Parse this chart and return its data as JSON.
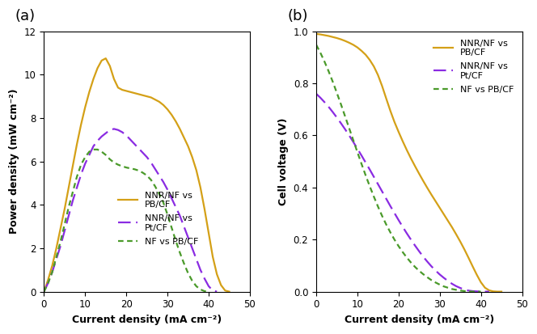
{
  "panel_a_label": "(a)",
  "panel_b_label": "(b)",
  "color_yellow": "#D4A017",
  "color_purple": "#8A2BE2",
  "color_green": "#4A9A2A",
  "legend_labels": [
    "NNR/NF vs\nPB/CF",
    "NNR/NF vs\nPt/CF",
    "NF vs PB/CF"
  ],
  "xlabel": "Current density (mA cm⁻²)",
  "ylabel_a": "Power density (mW cm⁻²)",
  "ylabel_b": "Cell voltage (V)",
  "xlim": [
    0,
    50
  ],
  "ylim_a": [
    0,
    12
  ],
  "ylim_b": [
    0,
    1.0
  ],
  "xticks_a": [
    0,
    10,
    20,
    30,
    40,
    50
  ],
  "yticks_a": [
    0,
    2,
    4,
    6,
    8,
    10,
    12
  ],
  "xticks_b": [
    0,
    10,
    20,
    30,
    40,
    50
  ],
  "yticks_b": [
    0,
    0.2,
    0.4,
    0.6,
    0.8,
    1.0
  ],
  "panel_label_fontsize": 13,
  "axis_label_fontsize": 9,
  "tick_fontsize": 8.5,
  "legend_fontsize": 8,
  "cd_yellow_a": [
    0,
    1,
    2,
    3,
    4,
    5,
    6,
    7,
    8,
    9,
    10,
    11,
    12,
    13,
    14,
    15,
    16,
    17,
    18,
    19,
    20,
    21,
    22,
    23,
    24,
    25,
    26,
    27,
    28,
    29,
    30,
    31,
    32,
    33,
    34,
    35,
    36,
    37,
    38,
    39,
    40,
    41,
    42,
    43,
    44,
    45
  ],
  "pd_yellow_a": [
    0,
    0.55,
    1.2,
    2.0,
    2.9,
    3.8,
    4.8,
    5.8,
    6.8,
    7.7,
    8.5,
    9.2,
    9.8,
    10.3,
    10.65,
    10.75,
    10.4,
    9.8,
    9.4,
    9.3,
    9.25,
    9.2,
    9.15,
    9.1,
    9.05,
    9.0,
    8.95,
    8.85,
    8.75,
    8.6,
    8.4,
    8.15,
    7.85,
    7.5,
    7.1,
    6.7,
    6.2,
    5.6,
    4.8,
    3.8,
    2.7,
    1.6,
    0.8,
    0.3,
    0.05,
    0.0
  ],
  "cd_purple_a": [
    0,
    1,
    2,
    3,
    4,
    5,
    6,
    7,
    8,
    9,
    10,
    11,
    12,
    13,
    14,
    15,
    16,
    17,
    18,
    19,
    20,
    21,
    22,
    23,
    24,
    25,
    26,
    27,
    28,
    29,
    30,
    31,
    32,
    33,
    34,
    35,
    36,
    37,
    38,
    39,
    40,
    41,
    42
  ],
  "pd_purple_a": [
    0,
    0.4,
    0.9,
    1.5,
    2.1,
    2.8,
    3.5,
    4.2,
    4.8,
    5.4,
    5.9,
    6.3,
    6.7,
    6.95,
    7.15,
    7.3,
    7.45,
    7.5,
    7.45,
    7.35,
    7.2,
    7.0,
    6.8,
    6.6,
    6.4,
    6.2,
    5.95,
    5.65,
    5.35,
    5.05,
    4.7,
    4.3,
    3.9,
    3.5,
    3.0,
    2.5,
    2.0,
    1.5,
    1.0,
    0.6,
    0.25,
    0.05,
    0.0
  ],
  "cd_green_a": [
    0,
    1,
    2,
    3,
    4,
    5,
    6,
    7,
    8,
    9,
    10,
    11,
    12,
    13,
    14,
    15,
    16,
    17,
    18,
    19,
    20,
    21,
    22,
    23,
    24,
    25,
    26,
    27,
    28,
    29,
    30,
    31,
    32,
    33,
    34,
    35,
    36,
    37,
    38,
    39,
    40
  ],
  "pd_green_a": [
    0,
    0.4,
    0.9,
    1.6,
    2.3,
    3.1,
    3.9,
    4.6,
    5.3,
    5.85,
    6.2,
    6.45,
    6.55,
    6.55,
    6.45,
    6.3,
    6.1,
    5.95,
    5.85,
    5.78,
    5.72,
    5.68,
    5.64,
    5.58,
    5.48,
    5.35,
    5.15,
    4.85,
    4.5,
    4.1,
    3.55,
    2.95,
    2.35,
    1.8,
    1.3,
    0.85,
    0.5,
    0.25,
    0.1,
    0.02,
    0.0
  ],
  "cd_yellow_b": [
    0,
    1,
    2,
    3,
    4,
    5,
    6,
    7,
    8,
    9,
    10,
    11,
    12,
    13,
    14,
    15,
    16,
    17,
    18,
    19,
    20,
    21,
    22,
    23,
    24,
    25,
    26,
    27,
    28,
    29,
    30,
    31,
    32,
    33,
    34,
    35,
    36,
    37,
    38,
    39,
    40,
    41,
    42,
    43,
    44,
    45
  ],
  "cv_yellow_b": [
    0.99,
    0.988,
    0.985,
    0.982,
    0.978,
    0.974,
    0.969,
    0.963,
    0.956,
    0.948,
    0.938,
    0.925,
    0.91,
    0.89,
    0.865,
    0.832,
    0.79,
    0.742,
    0.695,
    0.652,
    0.614,
    0.578,
    0.544,
    0.512,
    0.482,
    0.453,
    0.425,
    0.398,
    0.372,
    0.347,
    0.322,
    0.297,
    0.272,
    0.247,
    0.22,
    0.192,
    0.162,
    0.13,
    0.097,
    0.065,
    0.036,
    0.015,
    0.005,
    0.001,
    0.0,
    0.0
  ],
  "cd_purple_b": [
    0,
    1,
    2,
    3,
    4,
    5,
    6,
    7,
    8,
    9,
    10,
    11,
    12,
    13,
    14,
    15,
    16,
    17,
    18,
    19,
    20,
    21,
    22,
    23,
    24,
    25,
    26,
    27,
    28,
    29,
    30,
    31,
    32,
    33,
    34,
    35,
    36,
    37,
    38,
    39,
    40,
    41,
    42
  ],
  "cv_purple_b": [
    0.76,
    0.745,
    0.728,
    0.71,
    0.69,
    0.669,
    0.647,
    0.624,
    0.6,
    0.575,
    0.549,
    0.523,
    0.496,
    0.469,
    0.441,
    0.413,
    0.385,
    0.357,
    0.329,
    0.302,
    0.275,
    0.249,
    0.224,
    0.2,
    0.177,
    0.155,
    0.134,
    0.115,
    0.097,
    0.081,
    0.066,
    0.053,
    0.041,
    0.03,
    0.021,
    0.014,
    0.008,
    0.004,
    0.002,
    0.001,
    0.0,
    0.0,
    0.0
  ],
  "cd_green_b": [
    0,
    1,
    2,
    3,
    4,
    5,
    6,
    7,
    8,
    9,
    10,
    11,
    12,
    13,
    14,
    15,
    16,
    17,
    18,
    19,
    20,
    21,
    22,
    23,
    24,
    25,
    26,
    27,
    28,
    29,
    30,
    31,
    32,
    33,
    34,
    35,
    36,
    37,
    38,
    39,
    40
  ],
  "cv_green_b": [
    0.948,
    0.918,
    0.884,
    0.847,
    0.807,
    0.764,
    0.72,
    0.674,
    0.628,
    0.582,
    0.536,
    0.491,
    0.447,
    0.405,
    0.365,
    0.327,
    0.291,
    0.258,
    0.228,
    0.2,
    0.175,
    0.152,
    0.131,
    0.112,
    0.095,
    0.08,
    0.067,
    0.055,
    0.044,
    0.035,
    0.027,
    0.02,
    0.015,
    0.01,
    0.007,
    0.004,
    0.002,
    0.001,
    0.0,
    0.0,
    0.0
  ]
}
